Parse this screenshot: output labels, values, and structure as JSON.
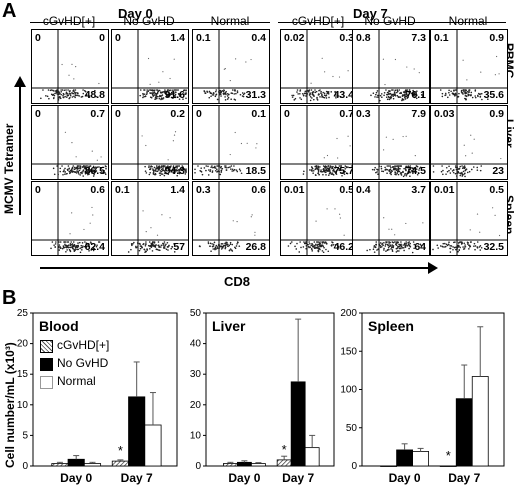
{
  "panel_a": {
    "letter": "A",
    "day_titles": [
      "Day 0",
      "Day 7"
    ],
    "columns": [
      "cGvHD[+]",
      "No GvHD",
      "Normal",
      "cGvHD[+]",
      "No GvHD",
      "Normal"
    ],
    "rows": [
      "PBMC",
      "Liver",
      "Spleen"
    ],
    "y_axis_label": "MCMV Tetramer",
    "x_axis_label": "CD8",
    "quadrants": [
      [
        [
          "0",
          "0",
          "48.8"
        ],
        [
          "0",
          "1.4",
          "91.6"
        ],
        [
          "0.1",
          "0.4",
          "31.3"
        ],
        [
          "0.02",
          "0.3",
          "43.4"
        ],
        [
          "0.8",
          "7.3",
          "76.1"
        ],
        [
          "0.1",
          "0.9",
          "35.6"
        ]
      ],
      [
        [
          "0",
          "0.7",
          "86.5"
        ],
        [
          "0",
          "0.2",
          "94.3"
        ],
        [
          "0",
          "0.1",
          "18.5"
        ],
        [
          "0",
          "0.7",
          "75.7"
        ],
        [
          "0.3",
          "7.9",
          "74.5"
        ],
        [
          "0.03",
          "0.9",
          "23"
        ]
      ],
      [
        [
          "0",
          "0.6",
          "62.4"
        ],
        [
          "0.1",
          "1.4",
          "57"
        ],
        [
          "0.3",
          "0.6",
          "26.8"
        ],
        [
          "0.01",
          "0.5",
          "46.2"
        ],
        [
          "0.4",
          "3.7",
          "64"
        ],
        [
          "0.01",
          "0.5",
          "32.5"
        ]
      ]
    ]
  },
  "panel_b": {
    "letter": "B",
    "y_axis_label": "Cell number/mL (x10³)",
    "legend": [
      "cGvHD[+]",
      "No GvHD",
      "Normal"
    ],
    "series_colors": {
      "cGvHD[+]": "hatched",
      "No GvHD": "#000000",
      "Normal": "#ffffff"
    },
    "significance_marker": "*"
  },
  "chart_data": [
    {
      "type": "bar",
      "title": "Blood",
      "categories": [
        "Day 0",
        "Day 7"
      ],
      "ylim": [
        0,
        25
      ],
      "yticks": [
        "0",
        "5",
        "10",
        "15",
        "20",
        "25"
      ],
      "series": [
        {
          "name": "cGvHD[+]",
          "values": [
            0.4,
            0.8
          ],
          "errors": [
            0.2,
            0.2
          ]
        },
        {
          "name": "No GvHD",
          "values": [
            1.1,
            11.3
          ],
          "errors": [
            0.6,
            5.7
          ]
        },
        {
          "name": "Normal",
          "values": [
            0.4,
            6.7
          ],
          "errors": [
            0.2,
            5.3
          ]
        }
      ],
      "star_on": "cGvHD[+] Day 7"
    },
    {
      "type": "bar",
      "title": "Liver",
      "categories": [
        "Day 0",
        "Day 7"
      ],
      "ylim": [
        0,
        50
      ],
      "yticks": [
        "0",
        "10",
        "20",
        "30",
        "40",
        "50"
      ],
      "series": [
        {
          "name": "cGvHD[+]",
          "values": [
            0.8,
            2.0
          ],
          "errors": [
            0.4,
            1.2
          ]
        },
        {
          "name": "No GvHD",
          "values": [
            1.2,
            27.5
          ],
          "errors": [
            0.5,
            20.5
          ]
        },
        {
          "name": "Normal",
          "values": [
            0.8,
            6.0
          ],
          "errors": [
            0.3,
            4.0
          ]
        }
      ],
      "star_on": "cGvHD[+] Day 7"
    },
    {
      "type": "bar",
      "title": "Spleen",
      "categories": [
        "Day 0",
        "Day 7"
      ],
      "ylim": [
        0,
        200
      ],
      "yticks": [
        "0",
        "50",
        "100",
        "150",
        "200"
      ],
      "series": [
        {
          "name": "cGvHD[+]",
          "values": [
            0,
            0
          ],
          "errors": [
            0,
            0
          ]
        },
        {
          "name": "No GvHD",
          "values": [
            21,
            88
          ],
          "errors": [
            8,
            44
          ]
        },
        {
          "name": "Normal",
          "values": [
            19,
            117
          ],
          "errors": [
            4,
            65
          ]
        }
      ],
      "star_on": "cGvHD[+] Day 7"
    }
  ]
}
